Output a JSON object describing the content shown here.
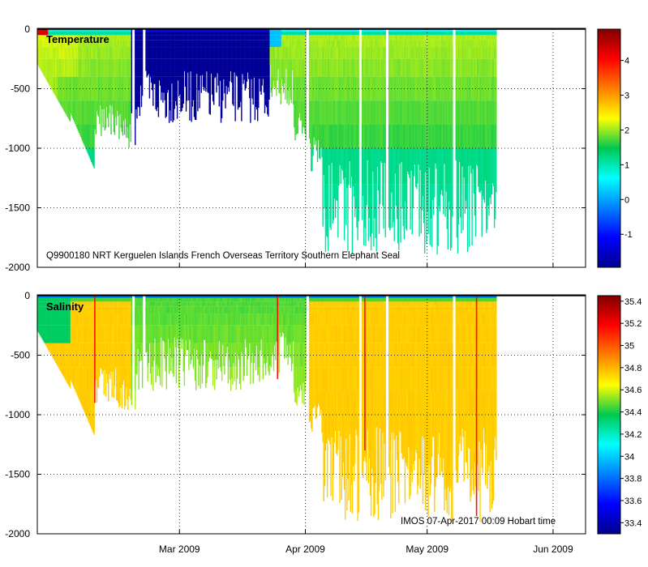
{
  "chart_data": [
    {
      "type": "heatmap",
      "title": "Temperature",
      "variable": "Temperature",
      "annotation": "Q9900180 NRT Kerguelen Islands French Overseas Territory Southern Elephant Seal",
      "ylim": [
        -2000,
        0
      ],
      "yticks": [
        0,
        -500,
        -1000,
        -1500,
        -2000
      ],
      "ytick_labels": [
        "0",
        "-500",
        "-1000",
        "-1500",
        "-2000"
      ],
      "xticks": [
        "Mar 2009",
        "Apr 2009",
        "May 2009",
        "Jun 2009"
      ],
      "xlim_days": [
        0,
        135
      ],
      "xtick_days": [
        35,
        66,
        96,
        127
      ],
      "data_coverage_days": [
        0,
        113
      ],
      "colorbar": {
        "range": [
          -1.95,
          4.9
        ],
        "ticks": [
          -1,
          0,
          1,
          2,
          3,
          4
        ],
        "tick_labels": [
          "-1",
          "0",
          "1",
          "2",
          "3",
          "4"
        ],
        "colormap": "jet"
      },
      "profiles_summary": {
        "surface_values": [
          4.3,
          2.0,
          -1.9,
          -1.9,
          1.5,
          0.5
        ],
        "deep_values": [
          1.6,
          1.2
        ],
        "max_depth": -2000
      }
    },
    {
      "type": "heatmap",
      "title": "Salinity",
      "variable": "Salinity",
      "annotation": "IMOS 07-Apr-2017 00:09 Hobart time",
      "ylim": [
        -2000,
        0
      ],
      "yticks": [
        0,
        -500,
        -1000,
        -1500,
        -2000
      ],
      "ytick_labels": [
        "0",
        "-500",
        "-1000",
        "-1500",
        "-2000"
      ],
      "xticks": [
        "Mar 2009",
        "Apr 2009",
        "May 2009",
        "Jun 2009"
      ],
      "xlim_days": [
        0,
        135
      ],
      "xtick_days": [
        35,
        66,
        96,
        127
      ],
      "data_coverage_days": [
        0,
        113
      ],
      "colorbar": {
        "range": [
          33.3,
          35.45
        ],
        "ticks": [
          33.4,
          33.6,
          33.8,
          34,
          34.2,
          34.4,
          34.6,
          34.8,
          35,
          35.2,
          35.4
        ],
        "tick_labels": [
          "33.4",
          "33.6",
          "33.8",
          "34",
          "34.2",
          "34.4",
          "34.6",
          "34.8",
          "35",
          "35.2",
          "35.4"
        ],
        "colormap": "jet"
      },
      "profiles_summary": {
        "surface_values": [
          33.9,
          34.1,
          34.4
        ],
        "deep_values": [
          34.75,
          34.7
        ],
        "max_depth": -2000
      }
    }
  ]
}
